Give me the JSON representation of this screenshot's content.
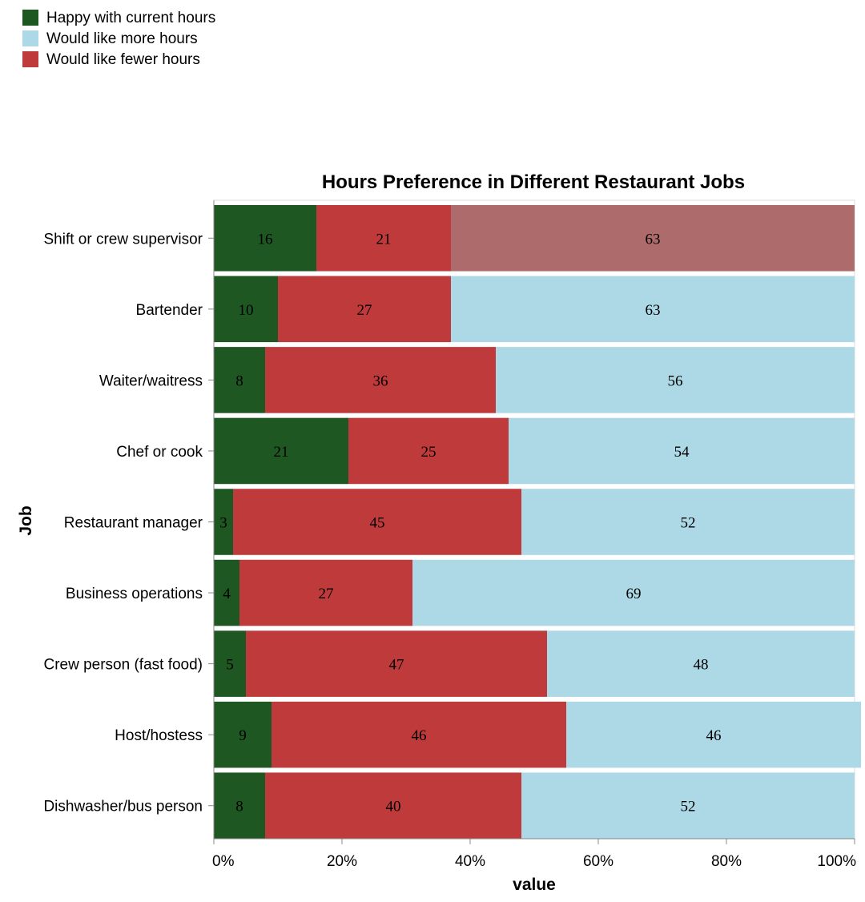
{
  "chart_data": {
    "type": "bar",
    "orientation": "horizontal",
    "stacked": "normalize",
    "title": "Hours Preference in Different Restaurant Jobs",
    "xlabel": "value",
    "ylabel": "Job",
    "xlim": [
      0,
      100
    ],
    "x_ticks": [
      "0%",
      "20%",
      "40%",
      "60%",
      "80%",
      "100%"
    ],
    "legend_position": "top-left",
    "categories": [
      "Shift or crew supervisor",
      "Bartender",
      "Waiter/waitress",
      "Chef or cook",
      "Restaurant manager",
      "Business operations",
      "Crew person (fast food)",
      "Host/hostess",
      "Dishwasher/bus person"
    ],
    "series": [
      {
        "name": "Happy with current hours",
        "color": "#1f5722",
        "values": [
          16,
          10,
          8,
          21,
          3,
          4,
          5,
          9,
          8
        ]
      },
      {
        "name": "Would like fewer hours",
        "color": "#bf3b3b",
        "values": [
          21,
          27,
          36,
          25,
          45,
          27,
          47,
          46,
          40
        ]
      },
      {
        "name": "Would like more hours",
        "color": "#add8e6",
        "values": [
          63,
          63,
          56,
          54,
          52,
          69,
          48,
          46,
          52
        ]
      }
    ],
    "legend": [
      {
        "name": "Happy with current hours",
        "color": "#1f5722"
      },
      {
        "name": "Would like more hours",
        "color": "#add8e6"
      },
      {
        "name": "Would like fewer hours",
        "color": "#bf3b3b"
      }
    ],
    "highlight": {
      "category": "Shift or crew supervisor",
      "series": "Would like more hours",
      "color": "#ad6b6b"
    }
  }
}
